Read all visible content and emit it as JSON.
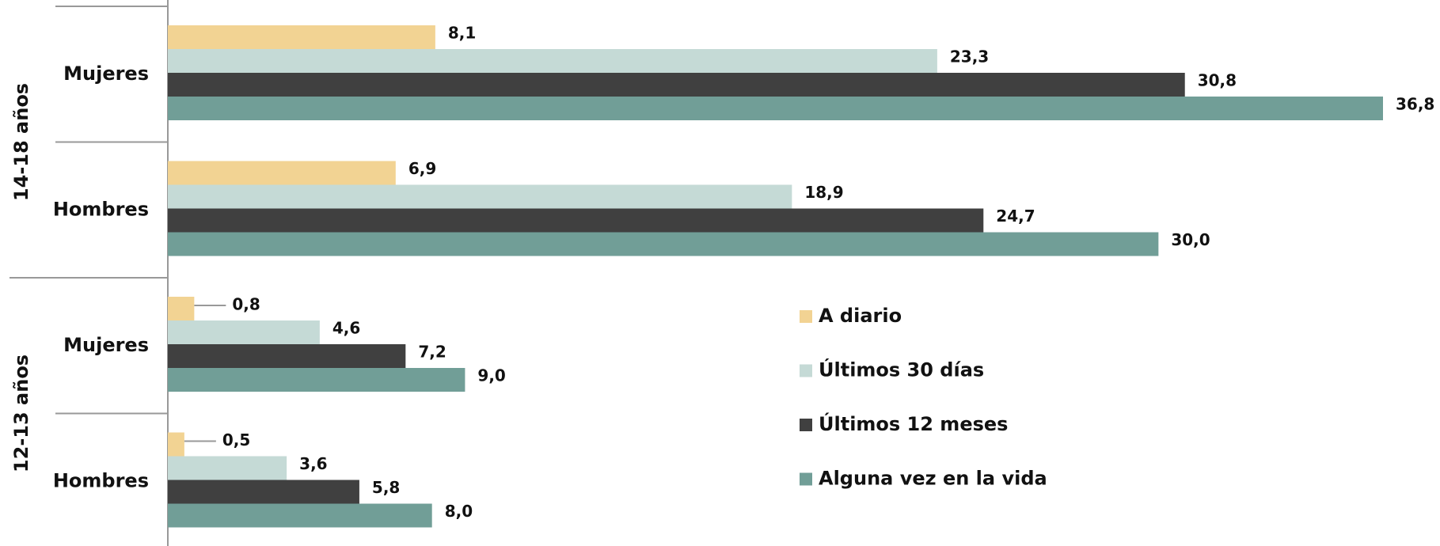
{
  "chart_data": {
    "type": "bar",
    "orientation": "horizontal",
    "groups": [
      "14-18 años",
      "12-13 años"
    ],
    "categories": [
      "Mujeres",
      "Hombres",
      "Mujeres",
      "Hombres"
    ],
    "series": [
      {
        "name": "A diario",
        "color": "#f2d393",
        "values": [
          8.1,
          6.9,
          0.8,
          0.5
        ],
        "value_labels": [
          "8,1",
          "6,9",
          "0,8",
          "0,5"
        ]
      },
      {
        "name": "Últimos 30 días",
        "color": "#c5dad6",
        "values": [
          23.3,
          18.9,
          4.6,
          3.6
        ],
        "value_labels": [
          "23,3",
          "18,9",
          "4,6",
          "3,6"
        ]
      },
      {
        "name": "Últimos 12 meses",
        "color": "#404040",
        "values": [
          30.8,
          24.7,
          7.2,
          5.8
        ],
        "value_labels": [
          "30,8",
          "24,7",
          "7,2",
          "5,8"
        ]
      },
      {
        "name": "Alguna vez en la vida",
        "color": "#719e97",
        "values": [
          36.8,
          30.0,
          9.0,
          8.0
        ],
        "value_labels": [
          "36,8",
          "30,0",
          "9,0",
          "8,0"
        ]
      }
    ]
  }
}
